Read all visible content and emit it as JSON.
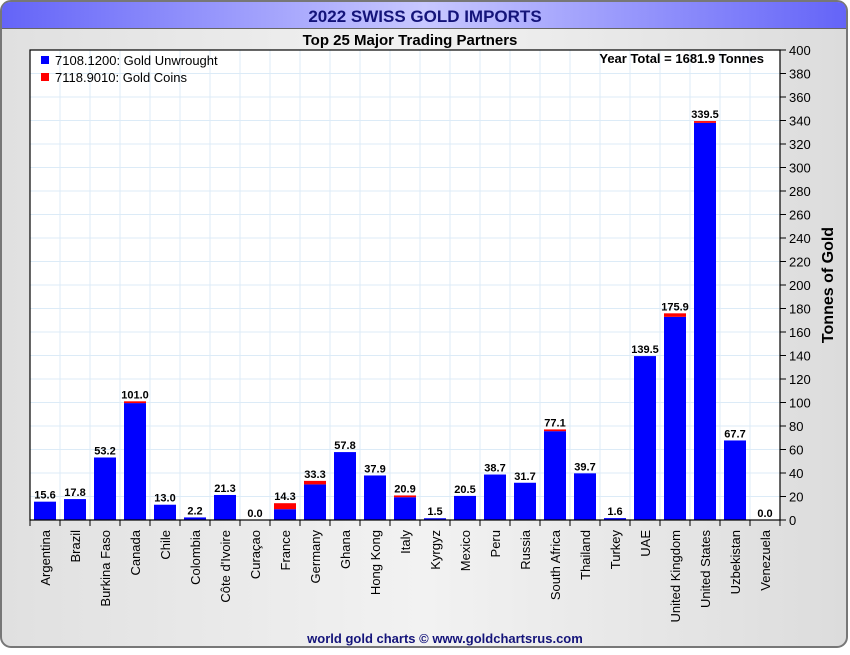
{
  "chart_data": {
    "type": "bar",
    "stacked": true,
    "title": "2022 SWISS GOLD IMPORTS",
    "subtitle": "Top 25 Major Trading Partners",
    "annotation": "Year Total = 1681.9 Tonnes",
    "ylabel": "Tonnes of Gold",
    "xlabel": "",
    "ylim": [
      0,
      400
    ],
    "ytick_step": 20,
    "grid": true,
    "legend_position": "top-left",
    "footer": "world gold charts © www.goldchartsrus.com",
    "categories": [
      "Argentina",
      "Brazil",
      "Burkina Faso",
      "Canada",
      "Chile",
      "Colombia",
      "Côte d'Ivoire",
      "Curaçao",
      "France",
      "Germany",
      "Ghana",
      "Hong Kong",
      "Italy",
      "Kyrgyz",
      "Mexico",
      "Peru",
      "Russia",
      "South Africa",
      "Thailand",
      "Turkey",
      "UAE",
      "United Kingdom",
      "United States",
      "Uzbekistan",
      "Venezuela"
    ],
    "totals": [
      "15.6",
      "17.8",
      "53.2",
      "101.0",
      "13.0",
      "2.2",
      "21.3",
      "0.0",
      "14.3",
      "33.3",
      "57.8",
      "37.9",
      "20.9",
      "1.5",
      "20.5",
      "38.7",
      "31.7",
      "77.1",
      "39.7",
      "1.6",
      "139.5",
      "175.9",
      "339.5",
      "67.7",
      "0.0"
    ],
    "series": [
      {
        "name": "7108.1200: Gold Unwrought",
        "color": "#0000ff",
        "values": [
          15.6,
          17.8,
          53.2,
          99.5,
          13.0,
          2.2,
          21.3,
          0.0,
          9.2,
          30.3,
          57.8,
          37.9,
          19.4,
          1.5,
          20.5,
          38.7,
          31.7,
          75.6,
          39.7,
          1.6,
          139.5,
          172.9,
          338.0,
          67.7,
          0.0
        ]
      },
      {
        "name": "7118.9010: Gold Coins",
        "color": "#ff0000",
        "values": [
          0,
          0,
          0,
          1.5,
          0,
          0,
          0,
          0,
          5.1,
          3.0,
          0,
          0,
          1.5,
          0,
          0,
          0,
          0,
          1.5,
          0,
          0,
          0,
          3.0,
          1.5,
          0,
          0
        ]
      }
    ]
  }
}
